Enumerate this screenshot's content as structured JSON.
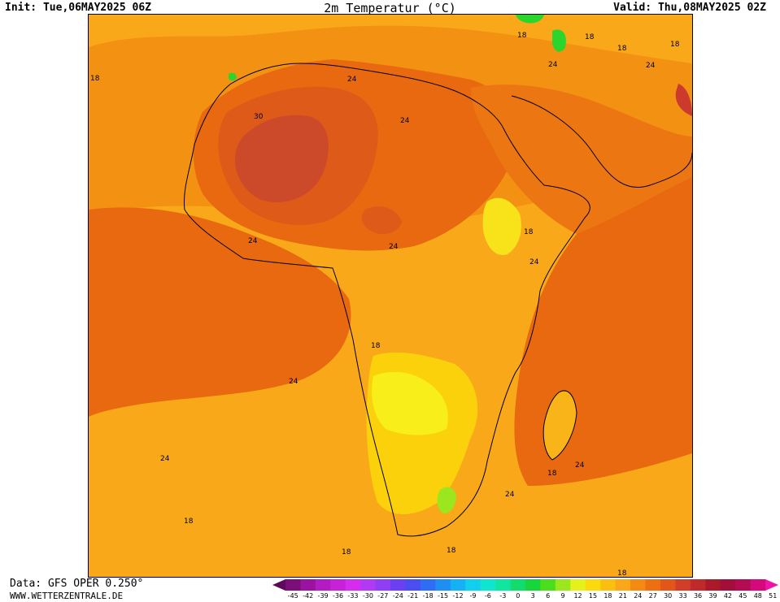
{
  "header": {
    "init": "Init: Tue,06MAY2025 06Z",
    "title": "2m Temperatur (°C)",
    "valid": "Valid: Thu,08MAY2025 02Z"
  },
  "footer": {
    "data_source": "Data: GFS OPER 0.250°",
    "website": "WWW.WETTERZENTRALE.DE"
  },
  "colors": {
    "t18": "#f9a81a",
    "t21": "#f39212",
    "t24": "#e8690f",
    "t27": "#dd5a18",
    "t30": "#cc4a2a",
    "t15": "#fbd10b",
    "t12": "#f8ef1a",
    "t9": "#9be61c",
    "t6": "#2bd52b"
  },
  "isotherm_labels": [
    "18",
    "30",
    "24",
    "24",
    "24",
    "24",
    "18",
    "24",
    "24",
    "18",
    "18",
    "24",
    "18",
    "24",
    "18",
    "24",
    "24",
    "18",
    "18",
    "18",
    "18",
    "24",
    "18",
    "18"
  ],
  "colorbar": {
    "labels": [
      "-45",
      "-42",
      "-39",
      "-36",
      "-33",
      "-30",
      "-27",
      "-24",
      "-21",
      "-18",
      "-15",
      "-12",
      "-9",
      "-6",
      "-3",
      "0",
      "3",
      "6",
      "9",
      "12",
      "15",
      "18",
      "21",
      "24",
      "27",
      "30",
      "33",
      "36",
      "39",
      "42",
      "45",
      "48",
      "51"
    ],
    "colors": [
      "#5c0a5c",
      "#7a0f7a",
      "#9a14a0",
      "#b21cc0",
      "#c822d8",
      "#d62cf0",
      "#b33af4",
      "#8f3ef4",
      "#6a40f2",
      "#4a4ef2",
      "#2f6ef4",
      "#1e8ef4",
      "#16b0f4",
      "#10d0ee",
      "#0ee6d0",
      "#10e6a0",
      "#12dc6e",
      "#16d63c",
      "#4ade1c",
      "#9be61c",
      "#e6f01a",
      "#fbd90c",
      "#fbbf10",
      "#f9a81a",
      "#f38a12",
      "#ec6f10",
      "#e2561a",
      "#d23e28",
      "#c02a2c",
      "#aa1a2a",
      "#a0103a",
      "#b40c52",
      "#d40a7a",
      "#ee14a6"
    ]
  }
}
